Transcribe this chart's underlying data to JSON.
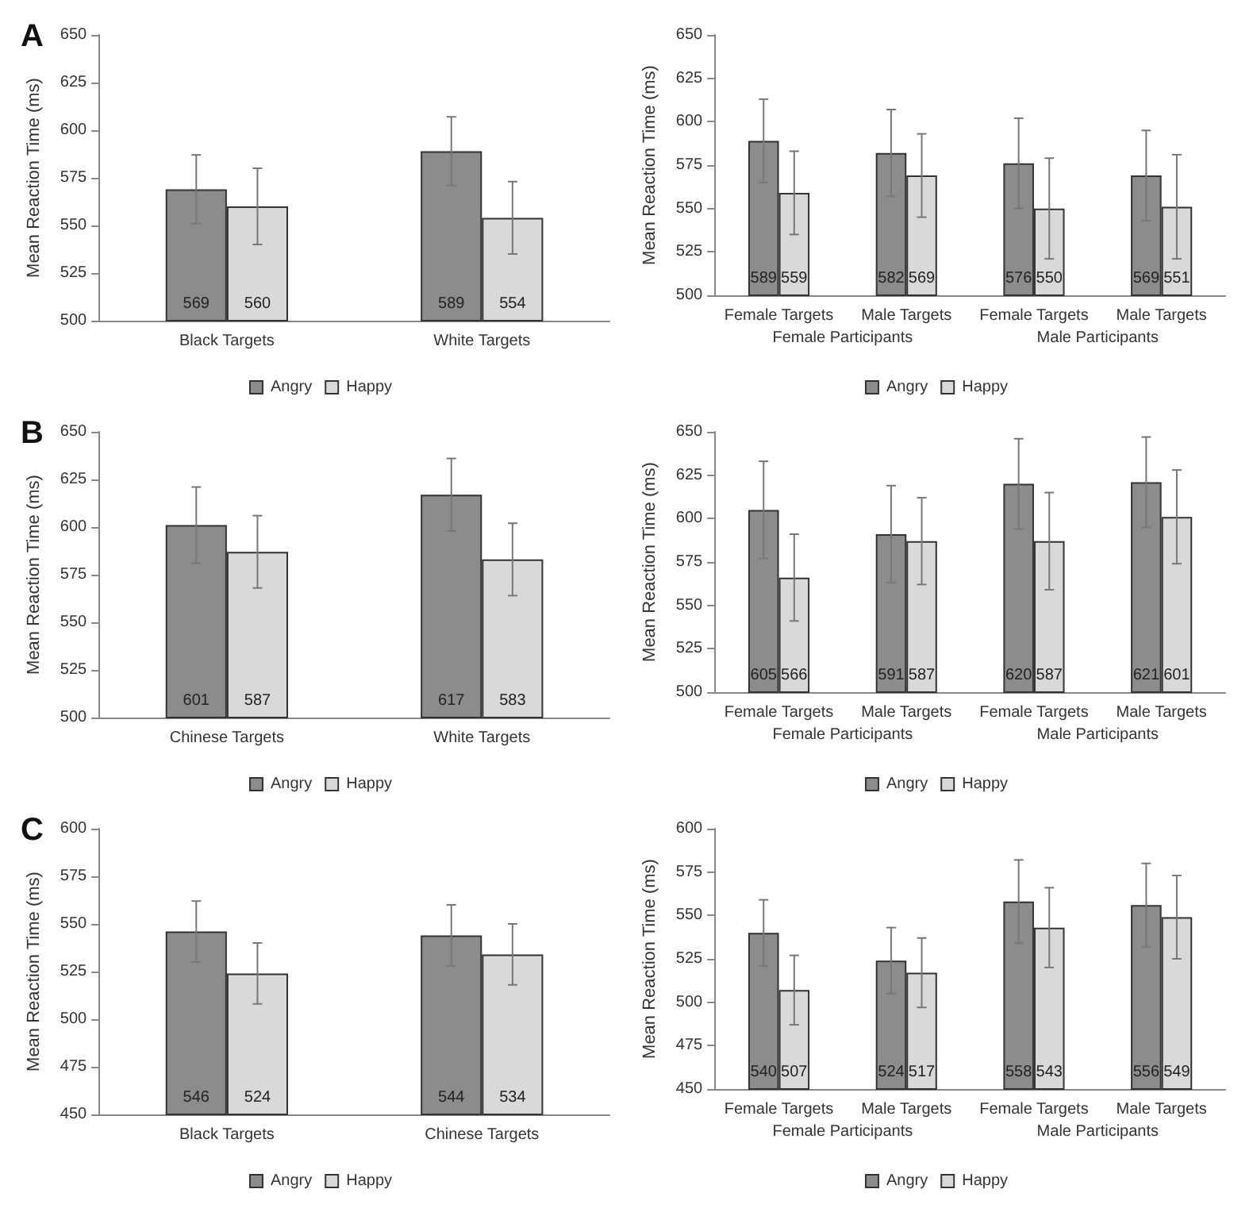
{
  "chart_data": [
    {
      "type": "bar",
      "title": "A",
      "ylabel": "Mean Reaction Time (ms)",
      "categories": [
        "Black Targets",
        "White Targets"
      ],
      "series": [
        {
          "name": "Angry",
          "color": "#8c8c8c",
          "values": [
            569,
            589
          ],
          "errors": [
            18,
            18
          ]
        },
        {
          "name": "Happy",
          "color": "#d9d9d9",
          "values": [
            560,
            554
          ],
          "errors": [
            20,
            19
          ]
        }
      ],
      "ylim": [
        500,
        650
      ],
      "yticks": [
        500,
        525,
        550,
        575,
        600,
        625,
        650
      ],
      "data_labels": true,
      "grid": false,
      "legend": "bottom"
    },
    {
      "type": "bar",
      "ylabel": "Mean Reaction Time (ms)",
      "categories": [
        "Female Targets",
        "Male Targets",
        "Female Targets",
        "Male Targets"
      ],
      "annotations": [
        "Female Participants",
        "Male Participants"
      ],
      "series": [
        {
          "name": "Angry",
          "color": "#8c8c8c",
          "values": [
            589,
            582,
            576,
            569
          ],
          "errors": [
            24,
            25,
            26,
            26
          ]
        },
        {
          "name": "Happy",
          "color": "#d9d9d9",
          "values": [
            559,
            569,
            550,
            551
          ],
          "errors": [
            24,
            24,
            29,
            30
          ]
        }
      ],
      "ylim": [
        500,
        650
      ],
      "yticks": [
        500,
        525,
        550,
        575,
        600,
        625,
        650
      ],
      "data_labels": true,
      "grid": false,
      "legend": "bottom"
    },
    {
      "type": "bar",
      "title": "B",
      "ylabel": "Mean Reaction Time (ms)",
      "categories": [
        "Chinese Targets",
        "White Targets"
      ],
      "series": [
        {
          "name": "Angry",
          "color": "#8c8c8c",
          "values": [
            601,
            617
          ],
          "errors": [
            20,
            19
          ]
        },
        {
          "name": "Happy",
          "color": "#d9d9d9",
          "values": [
            587,
            583
          ],
          "errors": [
            19,
            19
          ]
        }
      ],
      "ylim": [
        500,
        650
      ],
      "yticks": [
        500,
        525,
        550,
        575,
        600,
        625,
        650
      ],
      "data_labels": true,
      "grid": false,
      "legend": "bottom"
    },
    {
      "type": "bar",
      "ylabel": "Mean Reaction Time (ms)",
      "categories": [
        "Female Targets",
        "Male Targets",
        "Female Targets",
        "Male Targets"
      ],
      "annotations": [
        "Female Participants",
        "Male Participants"
      ],
      "series": [
        {
          "name": "Angry",
          "color": "#8c8c8c",
          "values": [
            605,
            591,
            620,
            621
          ],
          "errors": [
            28,
            28,
            26,
            26
          ]
        },
        {
          "name": "Happy",
          "color": "#d9d9d9",
          "values": [
            566,
            587,
            587,
            601
          ],
          "errors": [
            25,
            25,
            28,
            27
          ]
        }
      ],
      "ylim": [
        500,
        650
      ],
      "yticks": [
        500,
        525,
        550,
        575,
        600,
        625,
        650
      ],
      "data_labels": true,
      "grid": false,
      "legend": "bottom"
    },
    {
      "type": "bar",
      "title": "C",
      "ylabel": "Mean Reaction Time (ms)",
      "categories": [
        "Black Targets",
        "Chinese Targets"
      ],
      "series": [
        {
          "name": "Angry",
          "color": "#8c8c8c",
          "values": [
            546,
            544
          ],
          "errors": [
            16,
            16
          ]
        },
        {
          "name": "Happy",
          "color": "#d9d9d9",
          "values": [
            524,
            534
          ],
          "errors": [
            16,
            16
          ]
        }
      ],
      "ylim": [
        450,
        600
      ],
      "yticks": [
        450,
        475,
        500,
        525,
        550,
        575,
        600
      ],
      "data_labels": true,
      "grid": false,
      "legend": "bottom"
    },
    {
      "type": "bar",
      "ylabel": "Mean Reaction Time (ms)",
      "categories": [
        "Female Targets",
        "Male Targets",
        "Female Targets",
        "Male Targets"
      ],
      "annotations": [
        "Female Participants",
        "Male Participants"
      ],
      "series": [
        {
          "name": "Angry",
          "color": "#8c8c8c",
          "values": [
            540,
            524,
            558,
            556
          ],
          "errors": [
            19,
            19,
            24,
            24
          ]
        },
        {
          "name": "Happy",
          "color": "#d9d9d9",
          "values": [
            507,
            517,
            543,
            549
          ],
          "errors": [
            20,
            20,
            23,
            24
          ]
        }
      ],
      "ylim": [
        450,
        600
      ],
      "yticks": [
        450,
        475,
        500,
        525,
        550,
        575,
        600
      ],
      "data_labels": true,
      "grid": false,
      "legend": "bottom"
    }
  ]
}
